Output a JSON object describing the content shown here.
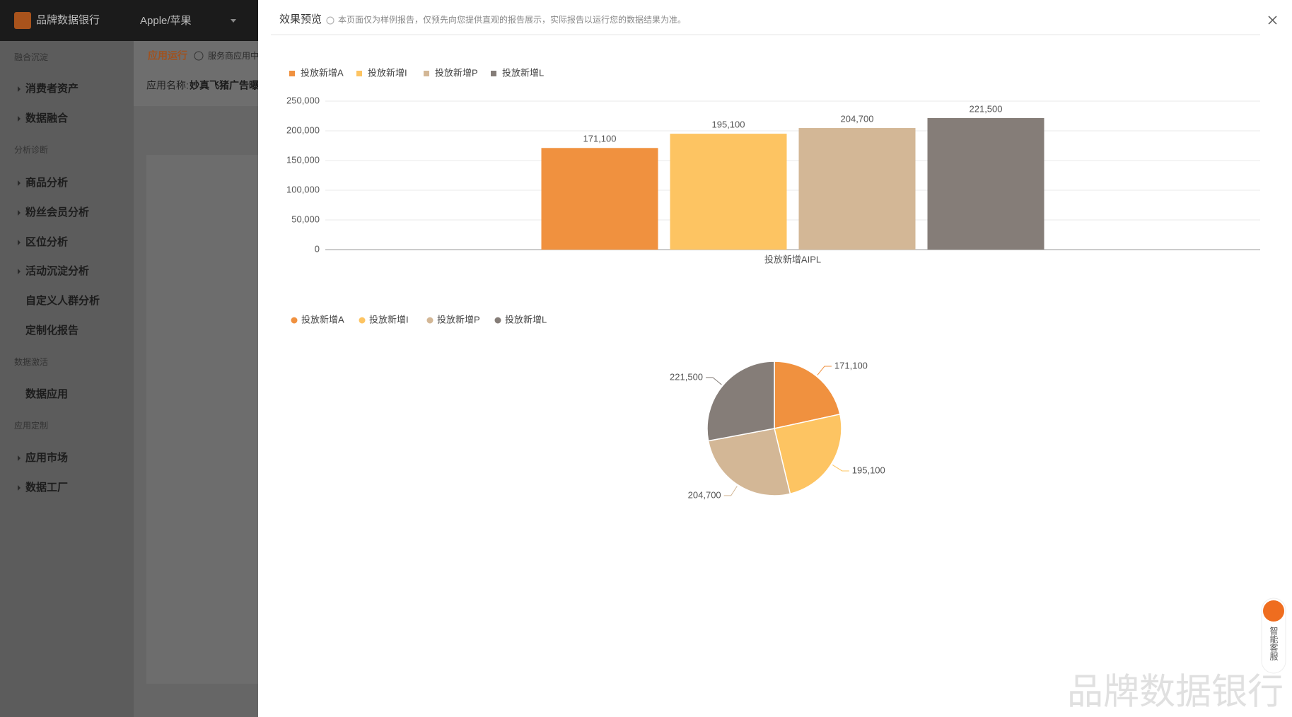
{
  "header": {
    "logo": "品牌数据银行",
    "brand": "Apple/苹果"
  },
  "sidebar": {
    "sections": [
      {
        "title": "融合沉淀",
        "items": [
          "消费者资产",
          "数据融合"
        ]
      },
      {
        "title": "分析诊断",
        "items": [
          "商品分析",
          "粉丝会员分析",
          "区位分析",
          "活动沉淀分析",
          "自定义人群分析",
          "定制化报告"
        ]
      },
      {
        "title": "数据激活",
        "items": [
          "数据应用"
        ]
      },
      {
        "title": "应用定制",
        "items": [
          "应用市场",
          "数据工厂"
        ]
      }
    ]
  },
  "content": {
    "tab": "应用运行",
    "tab_note": "服务商应用中",
    "app_name_label": "应用名称:",
    "app_name": "妙真飞猪广告曝"
  },
  "modal": {
    "title": "效果预览",
    "notice": "本页面仅为样例报告，仅预先向您提供直观的报告展示，实际报告以运行您的数据结果为准。"
  },
  "service": "智能客服",
  "watermark": "品牌数据银行",
  "chart_data": [
    {
      "type": "bar",
      "categories": [
        "投放新增AIPL"
      ],
      "series": [
        {
          "name": "投放新增A",
          "color": "#f0913f",
          "values": [
            171100
          ],
          "value_labels": [
            "171,100"
          ]
        },
        {
          "name": "投放新增I",
          "color": "#fdc462",
          "values": [
            195100
          ],
          "value_labels": [
            "195,100"
          ]
        },
        {
          "name": "投放新增P",
          "color": "#d3b796",
          "values": [
            204700
          ],
          "value_labels": [
            "204,700"
          ]
        },
        {
          "name": "投放新增L",
          "color": "#857d78",
          "values": [
            221500
          ],
          "value_labels": [
            "221,500"
          ]
        }
      ],
      "ylim": [
        0,
        250000
      ],
      "yticks": [
        0,
        {
          "value": 50000,
          "label": "50,000"
        },
        {
          "value": 100000,
          "label": "100,000"
        },
        {
          "value": 150000,
          "label": "150,000"
        },
        {
          "value": 200000,
          "label": "200,000"
        },
        {
          "value": 250000,
          "label": "250,000"
        }
      ],
      "grid": true,
      "legend": "top-left"
    },
    {
      "type": "pie",
      "categories": [
        "投放新增A",
        "投放新增I",
        "投放新增P",
        "投放新增L"
      ],
      "values": [
        171100,
        195100,
        204700,
        221500
      ],
      "value_labels": [
        "171,100",
        "195,100",
        "204,700",
        "221,500"
      ],
      "colors": [
        "#f0913f",
        "#fdc462",
        "#d3b796",
        "#857d78"
      ],
      "legend": "top-left"
    }
  ]
}
